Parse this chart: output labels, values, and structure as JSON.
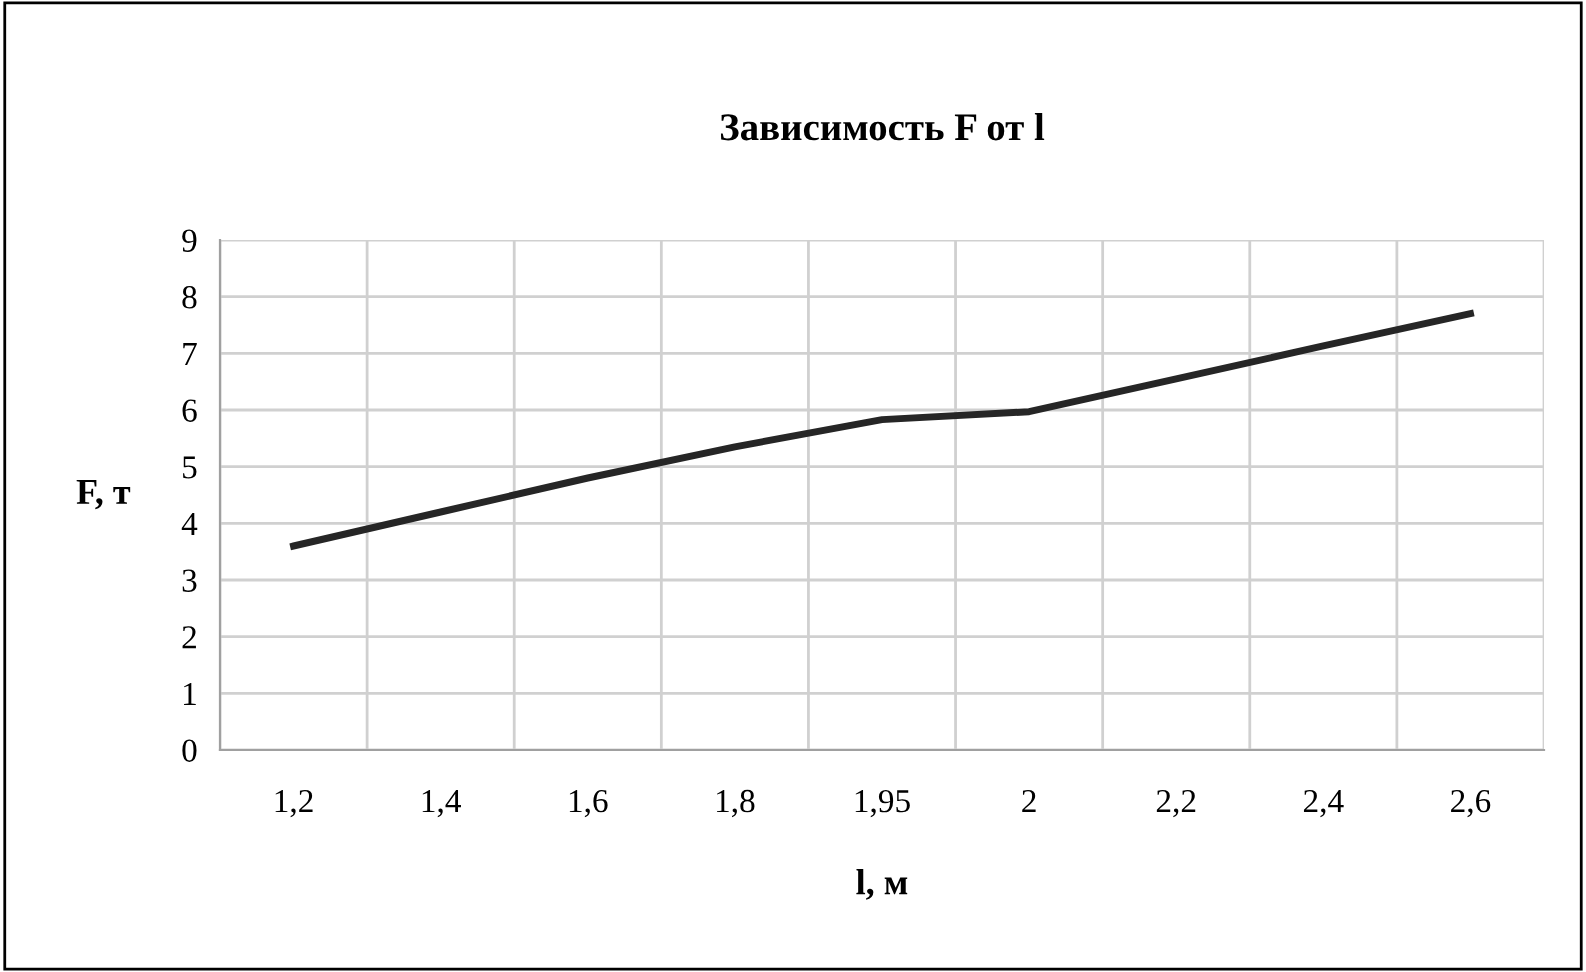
{
  "chart_data": {
    "type": "line",
    "title": "Зависимость F от l",
    "xlabel": "l, м",
    "ylabel": "F, т",
    "categories": [
      "1,2",
      "1,4",
      "1,6",
      "1,8",
      "1,95",
      "2",
      "2,2",
      "2,4",
      "2,6"
    ],
    "series": [
      {
        "color": "#262626",
        "values": [
          3.6,
          4.2,
          4.8,
          5.35,
          5.83,
          5.97,
          6.55,
          7.13,
          7.7
        ]
      }
    ],
    "ylim": [
      0,
      9
    ],
    "yticks": [
      0,
      1,
      2,
      3,
      4,
      5,
      6,
      7,
      8,
      9
    ],
    "grid": true,
    "legend": false,
    "marker": "none",
    "line_style": "solid"
  }
}
